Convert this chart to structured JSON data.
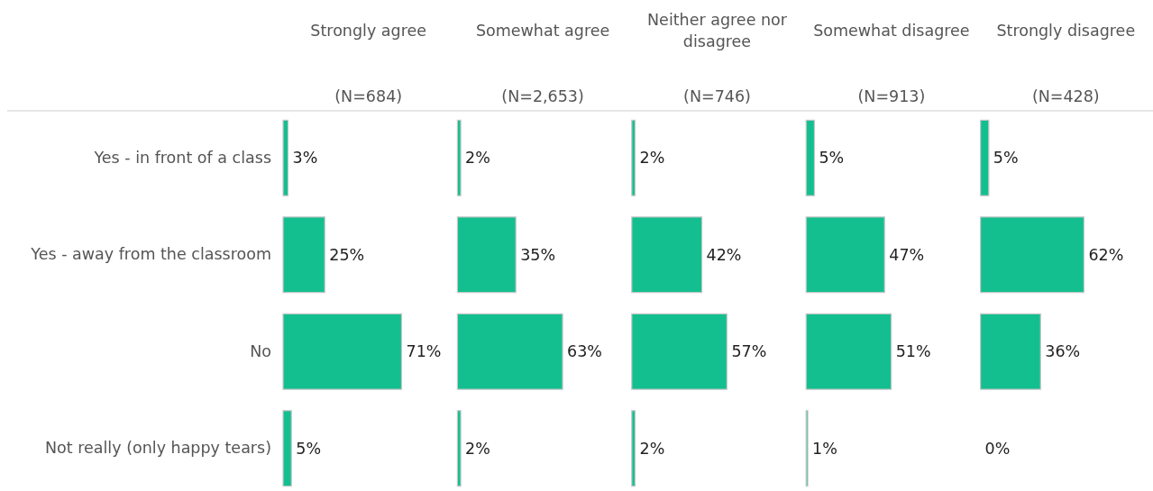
{
  "chart_data": [
    {
      "type": "bar",
      "orientation": "horizontal",
      "title": "Strongly agree",
      "subtitle": "(N=684)",
      "categories": [
        "Yes - in front of a class",
        "Yes - away from the classroom",
        "No",
        "Not really (only happy tears)"
      ],
      "values": [
        3,
        25,
        71,
        5
      ],
      "value_labels": [
        "3%",
        "25%",
        "71%",
        "5%"
      ],
      "color": "#13bf8f",
      "tick_labels": "y"
    },
    {
      "type": "bar",
      "orientation": "horizontal",
      "title": "Somewhat agree",
      "subtitle": "(N=2,653)",
      "categories": [
        null,
        null,
        null,
        null
      ],
      "values": [
        2,
        35,
        63,
        2
      ],
      "value_labels": [
        "2%",
        "35%",
        "63%",
        "2%"
      ],
      "color": "#13bf8f",
      "tick_labels": false
    },
    {
      "type": "bar",
      "orientation": "horizontal",
      "title": "Neither agree nor disagree",
      "subtitle": "(N=746)",
      "categories": [
        null,
        null,
        null,
        null
      ],
      "values": [
        2,
        42,
        57,
        2
      ],
      "value_labels": [
        "2%",
        "42%",
        "57%",
        "2%"
      ],
      "color": "#13bf8f",
      "tick_labels": false
    },
    {
      "type": "bar",
      "orientation": "horizontal",
      "title": "Somewhat disagree",
      "subtitle": "(N=913)",
      "categories": [
        null,
        null,
        null,
        null
      ],
      "values": [
        5,
        47,
        51,
        1
      ],
      "value_labels": [
        "5%",
        "47%",
        "51%",
        "1%"
      ],
      "color": "#13bf8f",
      "tick_labels": false
    },
    {
      "type": "bar",
      "orientation": "horizontal",
      "title": "Strongly disagree",
      "subtitle": "(N=428)",
      "categories": [
        null,
        null,
        null,
        null
      ],
      "values": [
        5,
        62,
        36,
        0
      ],
      "value_labels": [
        "5%",
        "62%",
        "36%",
        "0%"
      ],
      "color": "#13bf8f",
      "tick_labels": false
    }
  ]
}
